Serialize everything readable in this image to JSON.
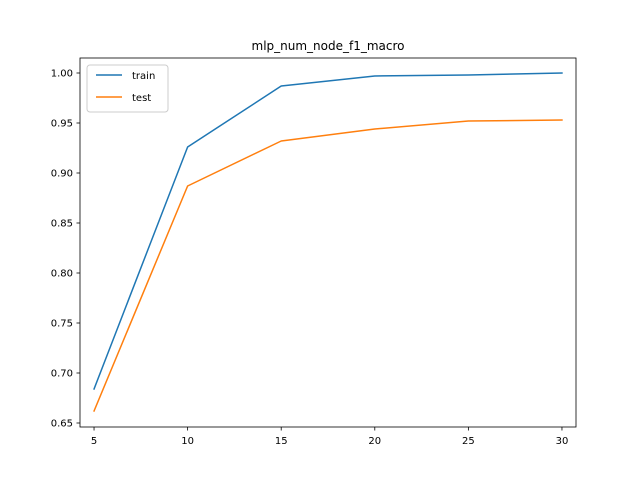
{
  "chart_data": {
    "type": "line",
    "title": "mlp_num_node_f1_macro",
    "xlabel": "",
    "ylabel": "",
    "x": [
      5,
      10,
      15,
      20,
      25,
      30
    ],
    "xlim": [
      4.25,
      30.75
    ],
    "ylim": [
      0.646,
      1.015
    ],
    "xticks": [
      5,
      10,
      15,
      20,
      25,
      30
    ],
    "yticks": [
      0.65,
      0.7,
      0.75,
      0.8,
      0.85,
      0.9,
      0.95,
      1.0
    ],
    "ytick_labels": [
      "0.65",
      "0.70",
      "0.75",
      "0.80",
      "0.85",
      "0.90",
      "0.95",
      "1.00"
    ],
    "grid": false,
    "legend_position": "top-left",
    "series": [
      {
        "name": "train",
        "color": "#1f77b4",
        "values": [
          0.684,
          0.926,
          0.987,
          0.997,
          0.998,
          1.0
        ]
      },
      {
        "name": "test",
        "color": "#ff7f0e",
        "values": [
          0.662,
          0.887,
          0.932,
          0.944,
          0.952,
          0.953
        ]
      }
    ]
  }
}
